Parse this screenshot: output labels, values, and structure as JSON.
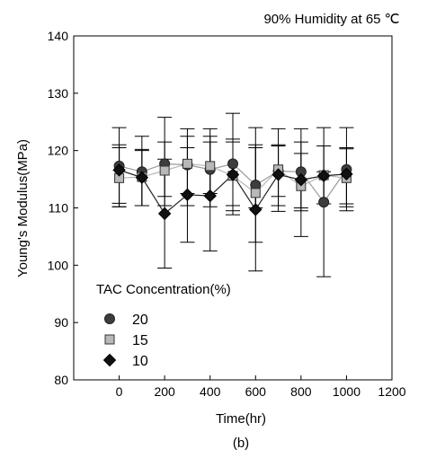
{
  "chart_data": {
    "type": "scatter",
    "title": "90% Humidity at 65  ℃",
    "xlabel": "Time(hr)",
    "ylabel": "Young's Modulus(MPa)",
    "caption": "(b)",
    "xlim": [
      -200,
      1200
    ],
    "ylim": [
      80,
      140
    ],
    "xticks": [
      0,
      200,
      400,
      600,
      800,
      1000,
      1200
    ],
    "yticks": [
      80,
      90,
      100,
      110,
      120,
      130,
      140
    ],
    "grid": false,
    "legend": {
      "title": "TAC Concentration(%)",
      "position": "bottom-left"
    },
    "series": [
      {
        "name": "20",
        "marker": "circle",
        "color": "#3d3d3d",
        "line_color": "#9a9a9a",
        "x": [
          0,
          100,
          200,
          300,
          400,
          500,
          600,
          700,
          800,
          900,
          1000
        ],
        "y": [
          117.3,
          116.3,
          117.7,
          117.5,
          116.7,
          117.7,
          114.0,
          116.4,
          116.3,
          111.0,
          116.7
        ],
        "err_low": [
          110.2,
          110.4,
          110.4,
          110.4,
          110.2,
          110.4,
          110.0,
          109.4,
          110.0,
          98.0,
          110.2
        ],
        "err_high": [
          124.0,
          122.5,
          125.8,
          123.8,
          123.8,
          126.5,
          124.0,
          123.8,
          123.8,
          124.0,
          124.0
        ]
      },
      {
        "name": "15",
        "marker": "square",
        "color": "#b8b8b8",
        "line_color": "#b8b8b8",
        "x": [
          0,
          100,
          200,
          300,
          400,
          500,
          600,
          700,
          800,
          900,
          1000
        ],
        "y": [
          115.2,
          115.4,
          116.5,
          117.7,
          117.3,
          115.6,
          112.6,
          116.7,
          113.8,
          115.7,
          115.2
        ],
        "err_low": [
          110.8,
          110.4,
          112.0,
          112.5,
          112.5,
          109.5,
          104.0,
          112.0,
          109.5,
          110.7,
          110.7
        ],
        "err_high": [
          120.5,
          120.0,
          121.5,
          122.5,
          122.5,
          122.0,
          121.0,
          120.8,
          119.5,
          120.8,
          120.5
        ]
      },
      {
        "name": "10",
        "marker": "diamond",
        "color": "#111111",
        "line_color": "#222222",
        "x": [
          0,
          100,
          200,
          300,
          400,
          500,
          600,
          700,
          800,
          900,
          1000
        ],
        "y": [
          116.6,
          115.3,
          109.0,
          112.3,
          112.1,
          115.8,
          109.7,
          115.8,
          114.9,
          115.6,
          115.9
        ],
        "err_low": [
          110.2,
          110.4,
          99.5,
          104.0,
          102.5,
          108.8,
          99.0,
          110.4,
          105.0,
          110.7,
          109.5
        ],
        "err_high": [
          121.0,
          120.2,
          118.5,
          120.5,
          121.5,
          121.5,
          120.5,
          121.0,
          121.5,
          116.3,
          120.3
        ]
      }
    ]
  }
}
